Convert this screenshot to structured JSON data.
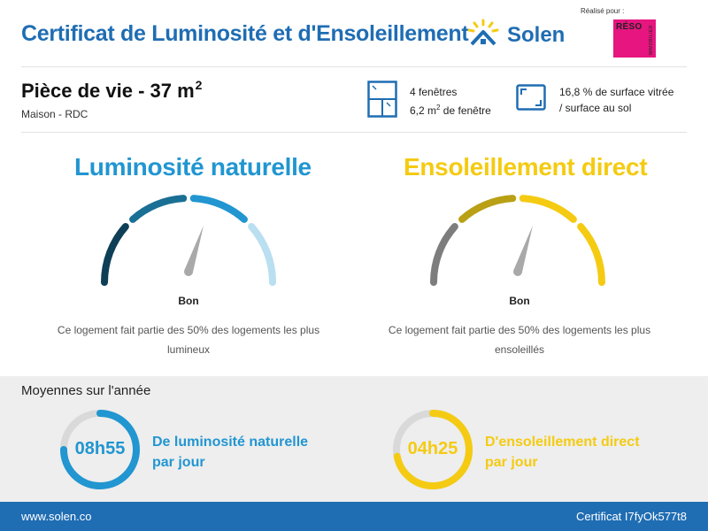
{
  "header": {
    "title": "Certificat de Luminosité et d'Ensoleillement",
    "brand": "Solen",
    "made_for": "Réalisé pour :",
    "partner_name": "RÉSO",
    "partner_sub": "IMMOBILIER",
    "partner_color": "#e6157f"
  },
  "room": {
    "title": "Pièce de vie - 37 m",
    "title_sup": "2",
    "subtitle": "Maison - RDC",
    "windows_count": "4 fenêtres",
    "window_area_pre": "6,2 m",
    "window_area_sup": "2",
    "window_area_post": " de fenêtre",
    "ratio_line1": "16,8 % de surface vitrée",
    "ratio_line2": "/ surface au sol"
  },
  "luminosity": {
    "title": "Luminosité naturelle",
    "rating": "Bon",
    "description": "Ce logement fait partie des 50% des logements les plus lumineux",
    "accent": "#2196d1",
    "segment_colors": [
      "#0e3f57",
      "#1a6f95",
      "#2196d1",
      "#b9dff0"
    ],
    "needle_fraction": 0.6
  },
  "sunshine": {
    "title": "Ensoleillement direct",
    "rating": "Bon",
    "description": "Ce logement fait partie des 50% des logements les plus ensoleillés",
    "accent": "#f4cb12",
    "segment_colors": [
      "#7d7d7d",
      "#b9a015",
      "#f4cb12",
      "#f4cb12"
    ],
    "needle_fraction": 0.6
  },
  "averages": {
    "title": "Moyennes sur l'année",
    "luminosity_value": "08h55",
    "luminosity_label_1": "De luminosité naturelle",
    "luminosity_label_2": "par jour",
    "luminosity_fraction": 0.75,
    "sunshine_value": "04h25",
    "sunshine_label_1": "D'ensoleillement direct",
    "sunshine_label_2": "par jour",
    "sunshine_fraction": 0.72
  },
  "footer": {
    "website": "www.solen.co",
    "certificate": "Certificat I7fyOk577t8"
  }
}
